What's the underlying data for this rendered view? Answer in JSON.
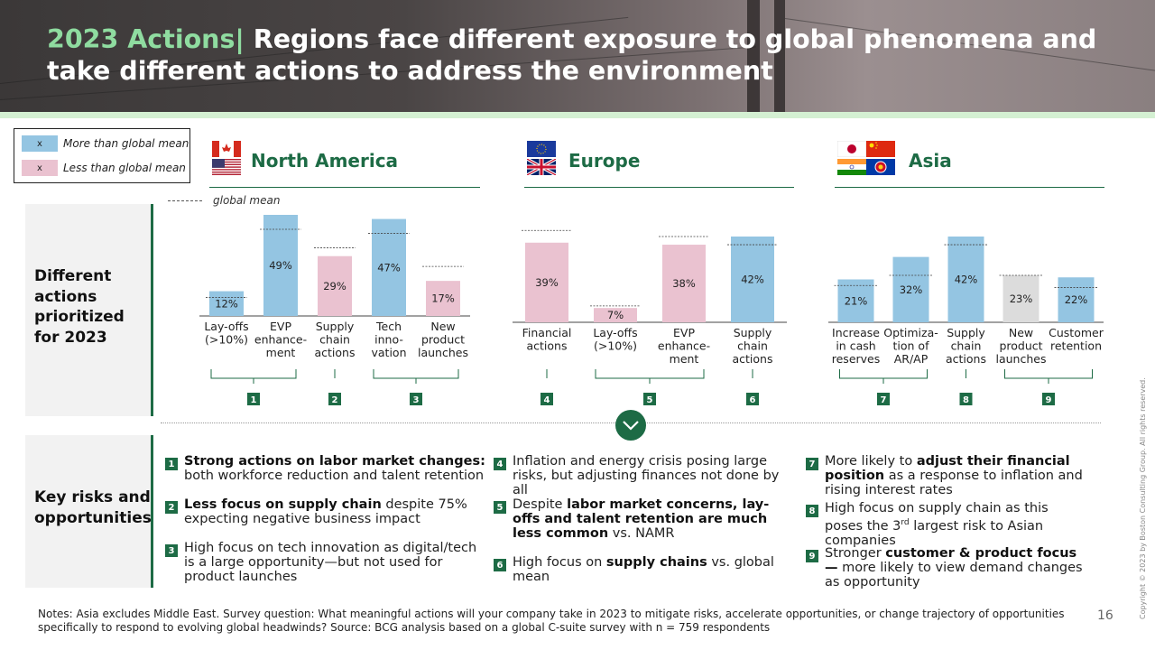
{
  "title": {
    "accent": "2023 Actions|",
    "text": " Regions face different exposure to global phenomena and take different actions to address the environment"
  },
  "legend": {
    "above": {
      "mark": "x",
      "label": "More than global mean",
      "color": "#94c5e2"
    },
    "below": {
      "mark": "x",
      "label": "Less than global mean",
      "color": "#eac2d0"
    }
  },
  "colors": {
    "above": "#94c5e2",
    "below": "#eac2d0",
    "neutral": "#dcdcdc",
    "accent": "#1d6b45"
  },
  "row_labels": {
    "actions": "Different actions prioritized for 2023",
    "risks": "Key risks and opportunities"
  },
  "global_mean_label": "global mean",
  "chart_data": [
    {
      "type": "bar",
      "title": "North America",
      "flag_icons": [
        "canada-flag-icon",
        "usa-flag-icon"
      ],
      "categories": [
        "Lay-offs (>10%)",
        "EVP enhance-ment",
        "Supply chain actions",
        "Tech inno-vation",
        "New product launches"
      ],
      "values": [
        12,
        49,
        29,
        47,
        17
      ],
      "labels": [
        "12%",
        "49%",
        "29%",
        "47%",
        "17%"
      ],
      "global_mean": [
        9,
        42,
        33,
        40,
        24
      ],
      "status": [
        "above",
        "above",
        "below",
        "above",
        "below"
      ],
      "groups": [
        {
          "badge": "1",
          "span": [
            0,
            1
          ]
        },
        {
          "badge": "2",
          "span": [
            2,
            2
          ]
        },
        {
          "badge": "3",
          "span": [
            3,
            4
          ]
        }
      ]
    },
    {
      "type": "bar",
      "title": "Europe",
      "flag_icons": [
        "eu-flag-icon",
        "uk-flag-icon"
      ],
      "categories": [
        "Financial actions",
        "Lay-offs (>10%)",
        "EVP enhance-ment",
        "Supply chain actions"
      ],
      "values": [
        39,
        7,
        38,
        42
      ],
      "labels": [
        "39%",
        "7%",
        "38%",
        "42%"
      ],
      "global_mean": [
        45,
        8,
        42,
        38
      ],
      "status": [
        "below",
        "below",
        "below",
        "above"
      ],
      "groups": [
        {
          "badge": "4",
          "span": [
            0,
            0
          ]
        },
        {
          "badge": "5",
          "span": [
            1,
            2
          ]
        },
        {
          "badge": "6",
          "span": [
            3,
            3
          ]
        }
      ]
    },
    {
      "type": "bar",
      "title": "Asia",
      "flag_icons": [
        "japan-flag-icon",
        "china-flag-icon",
        "india-flag-icon",
        "asean-flag-icon"
      ],
      "categories": [
        "Increase in cash reserves",
        "Optimiza-tion of AR/AP",
        "Supply chain actions",
        "New product launches",
        "Customer retention"
      ],
      "values": [
        21,
        32,
        42,
        23,
        22
      ],
      "labels": [
        "21%",
        "32%",
        "42%",
        "23%",
        "22%"
      ],
      "global_mean": [
        18,
        23,
        38,
        23,
        17
      ],
      "status": [
        "above",
        "above",
        "above",
        "neutral",
        "above"
      ],
      "groups": [
        {
          "badge": "7",
          "span": [
            0,
            1
          ]
        },
        {
          "badge": "8",
          "span": [
            2,
            2
          ]
        },
        {
          "badge": "9",
          "span": [
            3,
            4
          ]
        }
      ]
    }
  ],
  "risks": [
    {
      "num": "1",
      "bold": "Strong actions on labor market changes:",
      "text": " both workforce reduction and talent retention"
    },
    {
      "num": "2",
      "bold": "Less focus on supply chain",
      "text": " despite 75% expecting negative business impact"
    },
    {
      "num": "3",
      "bold": "",
      "text": "High focus on tech innovation as digital/tech is a large opportunity—but not used for product launches"
    },
    {
      "num": "4",
      "bold": "",
      "text": "Inflation and energy crisis posing large risks, but adjusting finances not done by all"
    },
    {
      "num": "5",
      "pre": "Despite ",
      "bold": "labor market concerns, lay-offs and talent retention are much less common",
      "text": " vs. NAMR"
    },
    {
      "num": "6",
      "pre": "High focus on ",
      "bold": "supply chains",
      "text": " vs. global mean"
    },
    {
      "num": "7",
      "pre": "More likely to ",
      "bold": "adjust their financial position",
      "text": " as a response to inflation and rising interest rates"
    },
    {
      "num": "8",
      "bold": "",
      "text": "High focus on supply chain as this poses the 3rd largest risk to Asian companies"
    },
    {
      "num": "9",
      "pre": "Stronger ",
      "bold": "customer & product focus—",
      "text": " more likely to view demand changes as opportunity"
    }
  ],
  "notes": "Notes: Asia excludes Middle East. Survey question: What meaningful actions will your company take in 2023 to mitigate risks, accelerate opportunities, or change trajectory of opportunities specifically to respond to evolving global headwinds? Source: BCG analysis based on a global C-suite survey with n = 759 respondents",
  "page_number": "16",
  "copyright": "Copyright © 2023 by Boston Consulting Group. All rights reserved."
}
